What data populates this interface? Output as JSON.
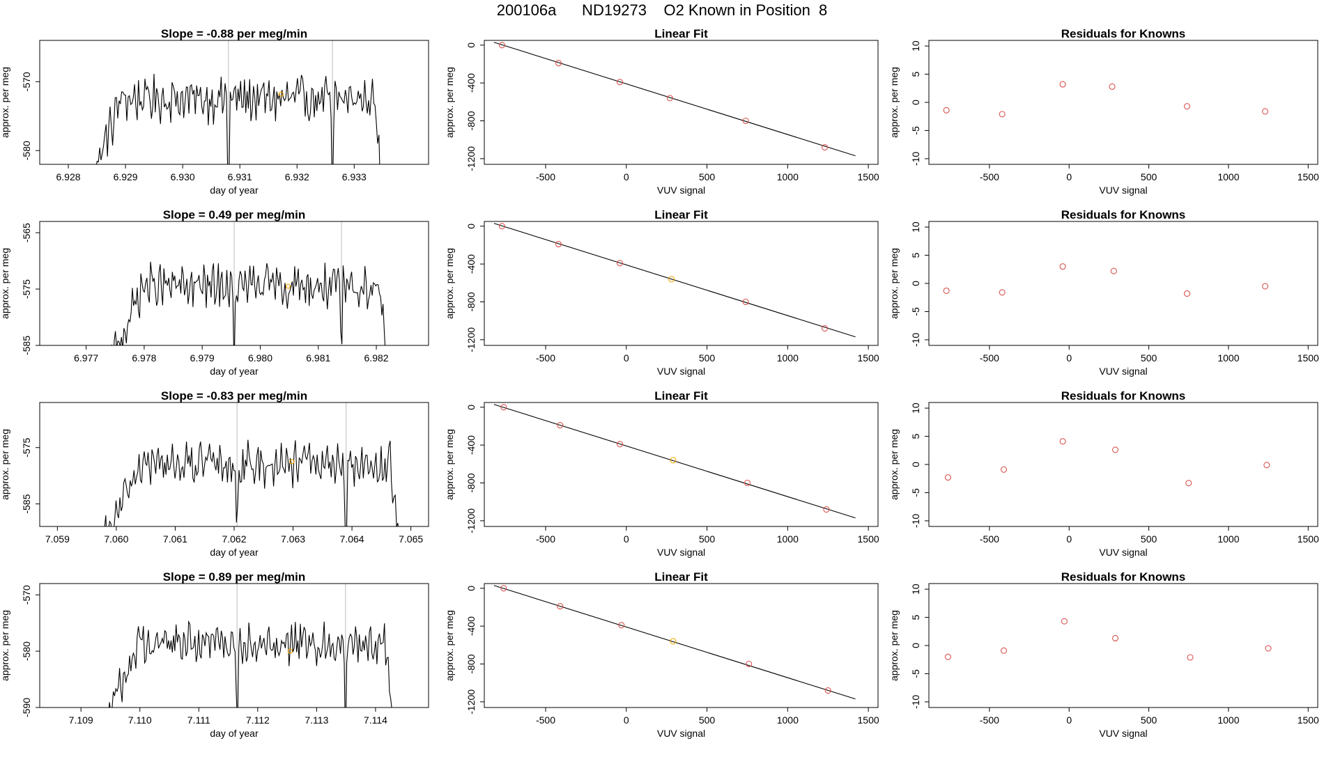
{
  "figure": {
    "main_title": "200106a      ND19273    O2 Known in Position  8"
  },
  "colors": {
    "trace": "#000000",
    "vline": "#c8c8c8",
    "point": "#d9534f",
    "highlight": "#f0a500",
    "fit_line": "#000000"
  },
  "chart_data": [
    {
      "type": "line",
      "row": 1,
      "col": 1,
      "title": "Slope =  -0.88  per meg/min",
      "xlabel": "day of year",
      "ylabel": "approx. per meg",
      "xlim": [
        6.9275,
        6.9343
      ],
      "ylim": [
        -582,
        -564
      ],
      "xticks": [
        "6.928",
        "6.929",
        "6.930",
        "6.931",
        "6.932",
        "6.933"
      ],
      "yticks": [
        "-570",
        "-580"
      ],
      "vlines": [
        6.9308,
        6.93262
      ],
      "trace_x_range": [
        6.9283,
        6.9335
      ],
      "trace_mean": -572.5,
      "trace_amp": 2.6,
      "highlight_point": [
        6.93172,
        -571.8
      ]
    },
    {
      "type": "scatter",
      "row": 1,
      "col": 2,
      "title": "Linear Fit",
      "xlabel": "VUV signal",
      "ylabel": "approx. per meg",
      "xlim": [
        -880,
        1560
      ],
      "ylim": [
        -1260,
        50
      ],
      "xticks": [
        "-500",
        "0",
        "500",
        "1000",
        "1500"
      ],
      "yticks": [
        "0",
        "-400",
        "-800",
        "-1200"
      ],
      "points_x": [
        -770,
        -420,
        -40,
        270,
        740,
        1230
      ],
      "points_y": [
        0,
        -190,
        -390,
        -560,
        -800,
        -1080
      ],
      "fit_x": [
        -820,
        1420
      ],
      "fit_y": [
        30,
        -1170
      ],
      "highlight_index": null
    },
    {
      "type": "scatter",
      "row": 1,
      "col": 3,
      "title": "Residuals for Knowns",
      "xlabel": "VUV signal",
      "ylabel": "approx. per meg",
      "xlim": [
        -880,
        1560
      ],
      "ylim": [
        -11,
        11
      ],
      "xticks": [
        "-500",
        "0",
        "500",
        "1000",
        "1500"
      ],
      "yticks": [
        "10",
        "5",
        "0",
        "-5",
        "-10"
      ],
      "points_x": [
        -770,
        -420,
        -40,
        270,
        740,
        1230
      ],
      "points_y": [
        -1.4,
        -2.1,
        3.2,
        2.8,
        -0.7,
        -1.6
      ]
    },
    {
      "type": "line",
      "row": 2,
      "col": 1,
      "title": "Slope =  0.49  per meg/min",
      "xlabel": "day of year",
      "ylabel": "approx. per meg",
      "xlim": [
        6.9762,
        6.9829
      ],
      "ylim": [
        -585,
        -563
      ],
      "xticks": [
        "6.977",
        "6.978",
        "6.979",
        "6.980",
        "6.981",
        "6.982"
      ],
      "yticks": [
        "-565",
        "-575",
        "-585"
      ],
      "vlines": [
        6.97955,
        6.9814
      ],
      "trace_x_range": [
        6.9774,
        6.9822
      ],
      "trace_mean": -574.5,
      "trace_amp": 3.0,
      "highlight_point": [
        6.98048,
        -574.5
      ]
    },
    {
      "type": "scatter",
      "row": 2,
      "col": 2,
      "title": "Linear Fit",
      "xlabel": "VUV signal",
      "ylabel": "approx. per meg",
      "xlim": [
        -880,
        1560
      ],
      "ylim": [
        -1260,
        50
      ],
      "xticks": [
        "-500",
        "0",
        "500",
        "1000",
        "1500"
      ],
      "yticks": [
        "0",
        "-400",
        "-800",
        "-1200"
      ],
      "points_x": [
        -770,
        -420,
        -40,
        280,
        740,
        1230
      ],
      "points_y": [
        0,
        -190,
        -390,
        -560,
        -800,
        -1080
      ],
      "fit_x": [
        -820,
        1420
      ],
      "fit_y": [
        30,
        -1170
      ],
      "highlight_index": 3
    },
    {
      "type": "scatter",
      "row": 2,
      "col": 3,
      "title": "Residuals for Knowns",
      "xlabel": "VUV signal",
      "ylabel": "approx. per meg",
      "xlim": [
        -880,
        1560
      ],
      "ylim": [
        -11,
        11
      ],
      "xticks": [
        "-500",
        "0",
        "500",
        "1000",
        "1500"
      ],
      "yticks": [
        "10",
        "5",
        "0",
        "-5",
        "-10"
      ],
      "points_x": [
        -770,
        -420,
        -40,
        280,
        740,
        1230
      ],
      "points_y": [
        -1.3,
        -1.6,
        3.0,
        2.2,
        -1.8,
        -0.5
      ]
    },
    {
      "type": "line",
      "row": 3,
      "col": 1,
      "title": "Slope =  -0.83  per meg/min",
      "xlabel": "day of year",
      "ylabel": "approx. per meg",
      "xlim": [
        7.0587,
        7.0653
      ],
      "ylim": [
        -589,
        -567
      ],
      "xticks": [
        "7.059",
        "7.060",
        "7.061",
        "7.062",
        "7.063",
        "7.064",
        "7.065"
      ],
      "yticks": [
        "-575",
        "-585"
      ],
      "vlines": [
        7.06205,
        7.0639
      ],
      "trace_x_range": [
        7.0598,
        7.0648
      ],
      "trace_mean": -578.0,
      "trace_amp": 3.0,
      "highlight_point": [
        7.06298,
        -577.5
      ]
    },
    {
      "type": "scatter",
      "row": 3,
      "col": 2,
      "title": "Linear Fit",
      "xlabel": "VUV signal",
      "ylabel": "approx. per meg",
      "xlim": [
        -880,
        1560
      ],
      "ylim": [
        -1260,
        50
      ],
      "xticks": [
        "-500",
        "0",
        "500",
        "1000",
        "1500"
      ],
      "yticks": [
        "0",
        "-400",
        "-800",
        "-1200"
      ],
      "points_x": [
        -760,
        -410,
        -40,
        290,
        750,
        1240
      ],
      "points_y": [
        0,
        -190,
        -390,
        -560,
        -800,
        -1080
      ],
      "fit_x": [
        -820,
        1420
      ],
      "fit_y": [
        30,
        -1170
      ],
      "highlight_index": 3
    },
    {
      "type": "scatter",
      "row": 3,
      "col": 3,
      "title": "Residuals for Knowns",
      "xlabel": "VUV signal",
      "ylabel": "approx. per meg",
      "xlim": [
        -880,
        1560
      ],
      "ylim": [
        -11,
        11
      ],
      "xticks": [
        "-500",
        "0",
        "500",
        "1000",
        "1500"
      ],
      "yticks": [
        "10",
        "5",
        "0",
        "-5",
        "-10"
      ],
      "points_x": [
        -760,
        -410,
        -40,
        290,
        750,
        1240
      ],
      "points_y": [
        -2.3,
        -0.9,
        4.1,
        2.6,
        -3.3,
        -0.1
      ]
    },
    {
      "type": "line",
      "row": 4,
      "col": 1,
      "title": "Slope =  0.89  per meg/min",
      "xlabel": "day of year",
      "ylabel": "approx. per meg",
      "xlim": [
        7.1083,
        7.1149
      ],
      "ylim": [
        -590,
        -568
      ],
      "xticks": [
        "7.109",
        "7.110",
        "7.111",
        "7.112",
        "7.113",
        "7.114"
      ],
      "yticks": [
        "-570",
        "-580",
        "-590"
      ],
      "vlines": [
        7.11165,
        7.11349
      ],
      "trace_x_range": [
        7.1094,
        7.1143
      ],
      "trace_mean": -578.5,
      "trace_amp": 2.8,
      "highlight_point": [
        7.11255,
        -580.0
      ]
    },
    {
      "type": "scatter",
      "row": 4,
      "col": 2,
      "title": "Linear Fit",
      "xlabel": "VUV signal",
      "ylabel": "approx. per meg",
      "xlim": [
        -880,
        1560
      ],
      "ylim": [
        -1260,
        50
      ],
      "xticks": [
        "-500",
        "0",
        "500",
        "1000",
        "1500"
      ],
      "yticks": [
        "0",
        "-400",
        "-800",
        "-1200"
      ],
      "points_x": [
        -760,
        -410,
        -30,
        290,
        760,
        1250
      ],
      "points_y": [
        0,
        -190,
        -390,
        -560,
        -800,
        -1080
      ],
      "fit_x": [
        -820,
        1420
      ],
      "fit_y": [
        30,
        -1170
      ],
      "highlight_index": 3
    },
    {
      "type": "scatter",
      "row": 4,
      "col": 3,
      "title": "Residuals for Knowns",
      "xlabel": "VUV signal",
      "ylabel": "approx. per meg",
      "xlim": [
        -880,
        1560
      ],
      "ylim": [
        -11,
        11
      ],
      "xticks": [
        "-500",
        "0",
        "500",
        "1000",
        "1500"
      ],
      "yticks": [
        "10",
        "5",
        "0",
        "-5",
        "-10"
      ],
      "points_x": [
        -760,
        -410,
        -30,
        290,
        760,
        1250
      ],
      "points_y": [
        -2.0,
        -0.9,
        4.3,
        1.3,
        -2.1,
        -0.5
      ]
    }
  ]
}
